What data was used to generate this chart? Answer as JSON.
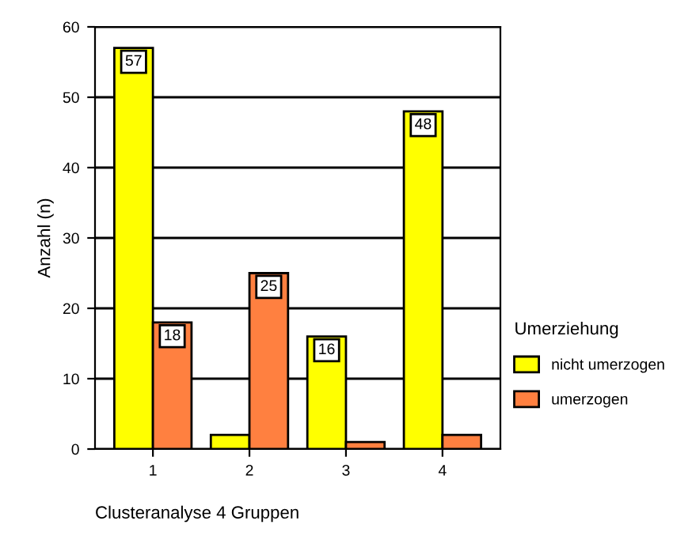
{
  "chart_data": {
    "type": "bar",
    "xlabel": "Clusteranalyse 4 Gruppen",
    "ylabel": "Anzahl (n)",
    "legend_title": "Umerziehung",
    "categories": [
      "1",
      "2",
      "3",
      "4"
    ],
    "series": [
      {
        "name": "nicht umerzogen",
        "color": "#ffff00",
        "values": [
          57,
          2,
          16,
          48
        ],
        "value_labels": [
          "57",
          null,
          "16",
          "48"
        ]
      },
      {
        "name": "umerzogen",
        "color": "#ff8040",
        "values": [
          18,
          25,
          1,
          2
        ],
        "value_labels": [
          "18",
          "25",
          null,
          null
        ]
      }
    ],
    "ylim": [
      0,
      60
    ],
    "yticks": [
      0,
      10,
      20,
      30,
      40,
      50,
      60
    ],
    "grid": "y",
    "legend": "right"
  }
}
